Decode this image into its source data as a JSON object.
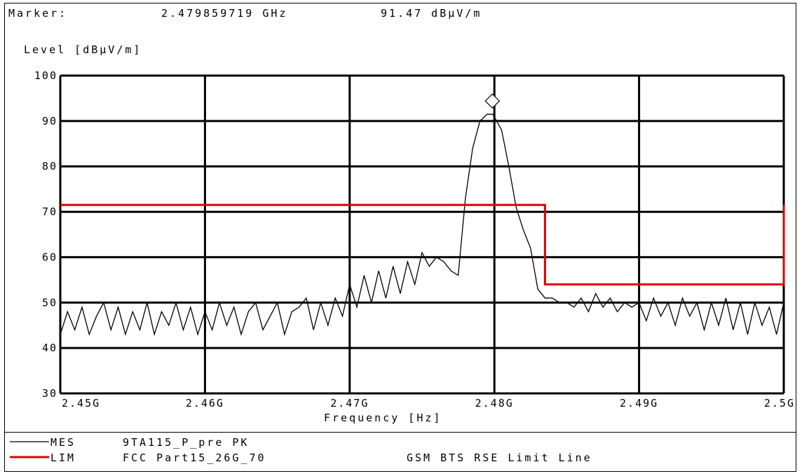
{
  "header": {
    "marker_label": "Marker:",
    "marker_freq": "2.479859719 GHz",
    "marker_level": "91.47 dBµV/m"
  },
  "chart_data": {
    "type": "line",
    "ylabel": "Level [dBµV/m]",
    "xlabel": "Frequency [Hz]",
    "xlim": [
      2.45,
      2.5
    ],
    "ylim": [
      30,
      100
    ],
    "x_unit": "GHz",
    "xticks": [
      2.45,
      2.46,
      2.47,
      2.48,
      2.49,
      2.5
    ],
    "xtick_labels": [
      "2.45G",
      "2.46G",
      "2.47G",
      "2.48G",
      "2.49G",
      "2.5G"
    ],
    "yticks": [
      30,
      40,
      50,
      60,
      70,
      80,
      90,
      100
    ],
    "ytick_labels": [
      "30",
      "40",
      "50",
      "60",
      "70",
      "80",
      "90",
      "100"
    ],
    "grid": true,
    "marker": {
      "x": 2.479859719,
      "y": 91.47,
      "shape": "diamond"
    },
    "series": [
      {
        "name": "MES",
        "color": "#000000",
        "x": [
          2.45,
          2.4505,
          2.451,
          2.4515,
          2.452,
          2.4525,
          2.453,
          2.4535,
          2.454,
          2.4545,
          2.455,
          2.4555,
          2.456,
          2.4565,
          2.457,
          2.4575,
          2.458,
          2.4585,
          2.459,
          2.4595,
          2.46,
          2.4605,
          2.461,
          2.4615,
          2.462,
          2.4625,
          2.463,
          2.4635,
          2.464,
          2.4645,
          2.465,
          2.4655,
          2.466,
          2.4665,
          2.467,
          2.4675,
          2.468,
          2.4685,
          2.469,
          2.4695,
          2.47,
          2.4705,
          2.471,
          2.4715,
          2.472,
          2.4725,
          2.473,
          2.4735,
          2.474,
          2.4745,
          2.475,
          2.4755,
          2.476,
          2.4765,
          2.477,
          2.4775,
          2.478,
          2.4785,
          2.479,
          2.4795,
          2.4799,
          2.4805,
          2.481,
          2.4815,
          2.482,
          2.4825,
          2.483,
          2.4835,
          2.484,
          2.4845,
          2.485,
          2.4855,
          2.486,
          2.4865,
          2.487,
          2.4875,
          2.488,
          2.4885,
          2.489,
          2.4895,
          2.49,
          2.4905,
          2.491,
          2.4915,
          2.492,
          2.4925,
          2.493,
          2.4935,
          2.494,
          2.4945,
          2.495,
          2.4955,
          2.496,
          2.4965,
          2.497,
          2.4975,
          2.498,
          2.4985,
          2.499,
          2.4995,
          2.5
        ],
        "y": [
          43,
          48,
          44,
          49,
          43,
          47,
          50,
          44,
          49,
          43,
          48,
          44,
          50,
          43,
          48,
          45,
          50,
          44,
          49,
          43,
          48,
          44,
          50,
          45,
          49,
          43,
          48,
          50,
          44,
          47,
          50,
          43,
          48,
          49,
          51,
          44,
          50,
          45,
          51,
          47,
          54,
          49,
          56,
          50,
          57,
          51,
          58,
          52,
          59,
          54,
          61,
          58,
          60,
          59,
          57,
          56,
          73,
          84,
          90,
          91.5,
          91.47,
          88,
          80,
          71,
          66,
          62,
          53,
          51,
          51,
          50,
          50,
          49,
          51,
          48,
          52,
          49,
          51,
          48,
          50,
          49,
          50,
          46,
          51,
          47,
          50,
          45,
          51,
          47,
          50,
          44,
          50,
          45,
          51,
          44,
          50,
          43,
          50,
          45,
          49,
          43,
          50
        ]
      },
      {
        "name": "LIM",
        "color": "#e00000",
        "x": [
          2.45,
          2.4835,
          2.4835,
          2.5,
          2.5
        ],
        "y": [
          71.5,
          71.5,
          54,
          54,
          71.5
        ]
      }
    ]
  },
  "legend": [
    {
      "key": "MES",
      "text": "9TA115_P_pre PK",
      "note": "",
      "color": "#000000"
    },
    {
      "key": "LIM",
      "text": "FCC Part15_26G_70",
      "note": "GSM BTS RSE Limit Line",
      "color": "#e00000"
    }
  ]
}
